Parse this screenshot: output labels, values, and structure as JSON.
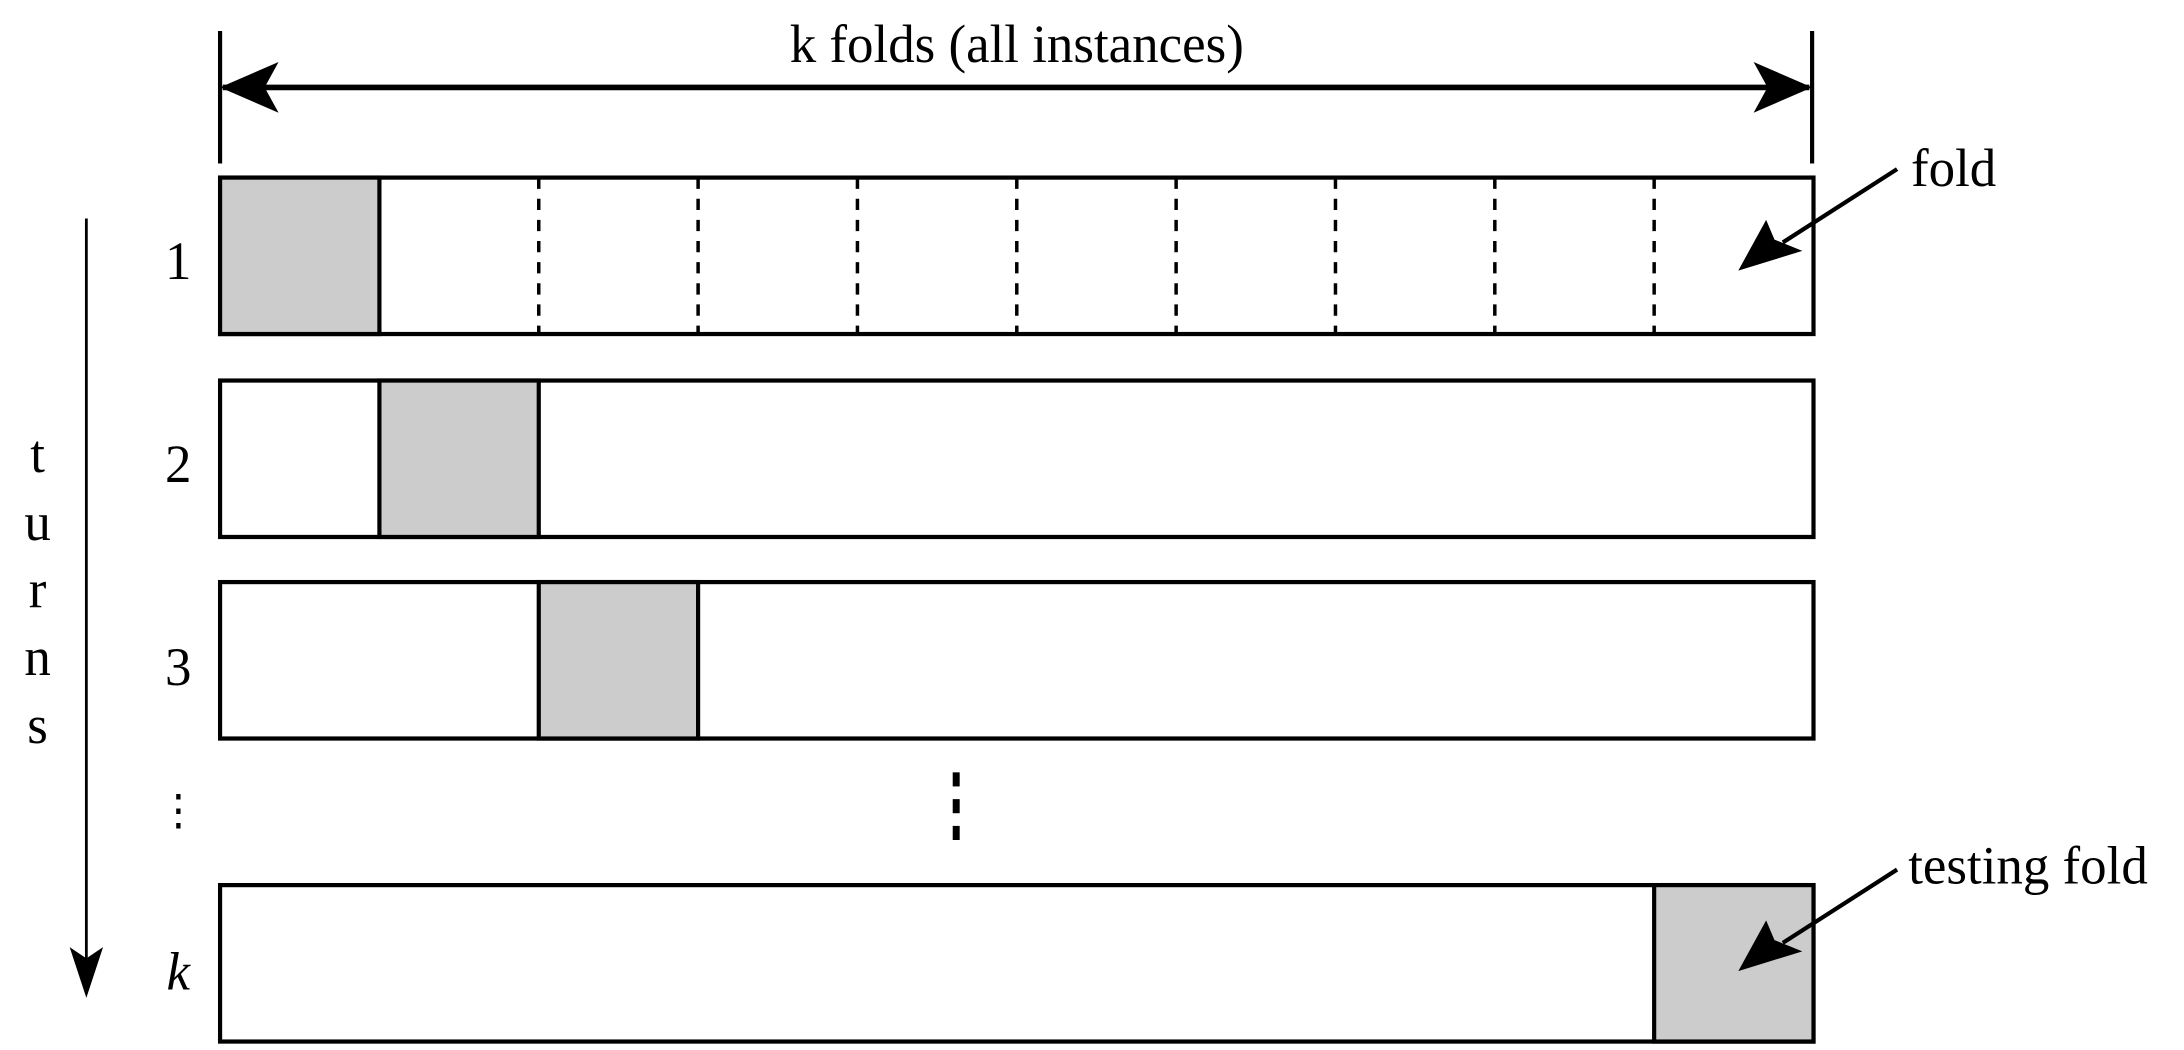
{
  "title": "k folds (all instances)",
  "axis_label_letters": [
    "t",
    "u",
    "r",
    "n",
    "s"
  ],
  "row_labels": [
    "1",
    "2",
    "3",
    "⋮",
    "k"
  ],
  "fold_label": "fold",
  "testing_fold_label": "testing fold",
  "folds_per_row": 10,
  "testing_fold_index": [
    0,
    1,
    2,
    9
  ],
  "colors": {
    "testing_fill": "#cccccc",
    "stroke": "#000000"
  }
}
